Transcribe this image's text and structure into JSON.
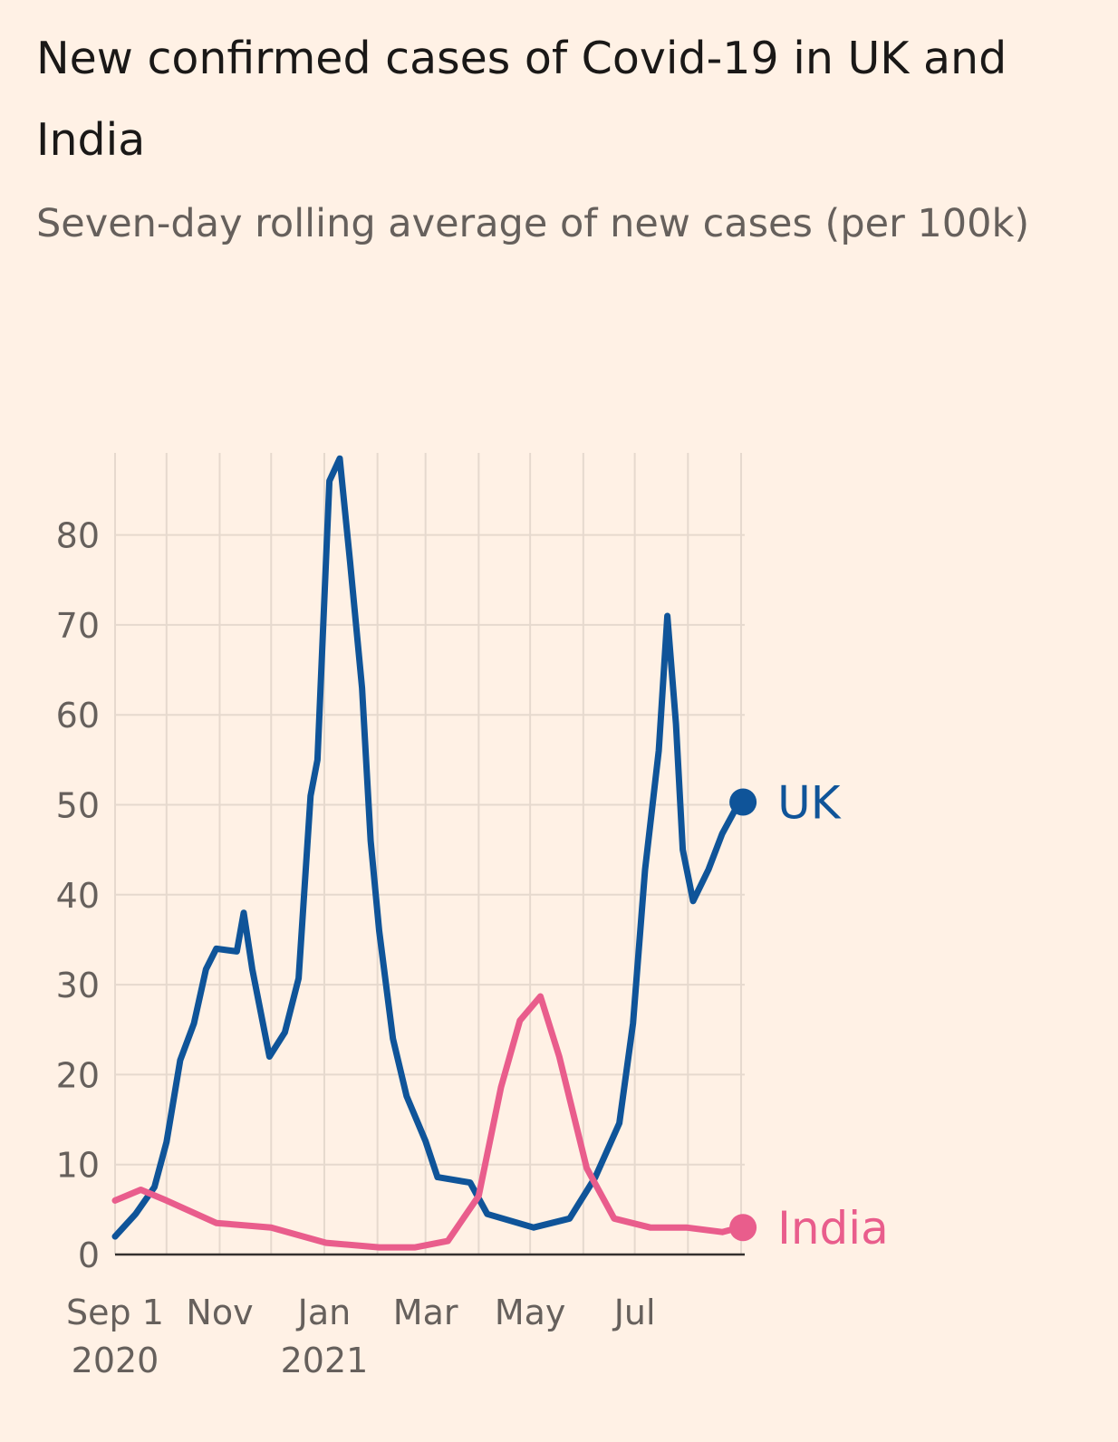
{
  "chart_data": {
    "type": "line",
    "title": "New confirmed cases of Covid-19 in UK and India",
    "subtitle": "Seven-day rolling average of new cases (per 100k)",
    "xlabel": "",
    "ylabel": "",
    "x_unit": "days since Sep 1 2020",
    "xlim": [
      0,
      365
    ],
    "ylim": [
      0,
      89
    ],
    "yticks": [
      0,
      10,
      20,
      30,
      40,
      50,
      60,
      70,
      80
    ],
    "xgrid_days": [
      0,
      30,
      61,
      91,
      122,
      153,
      181,
      212,
      242,
      273,
      303,
      334,
      365
    ],
    "xticks": [
      {
        "day": 0,
        "label": "Sep 1",
        "year": "2020"
      },
      {
        "day": 61,
        "label": "Nov",
        "year": ""
      },
      {
        "day": 122,
        "label": "Jan",
        "year": "2021"
      },
      {
        "day": 181,
        "label": "Mar",
        "year": ""
      },
      {
        "day": 242,
        "label": "May",
        "year": ""
      },
      {
        "day": 303,
        "label": "Jul",
        "year": ""
      }
    ],
    "grid": true,
    "series": [
      {
        "name": "UK",
        "color": "#0F5499",
        "x": [
          0,
          12,
          23,
          30,
          38,
          46,
          53,
          59,
          71,
          75,
          80,
          90,
          99,
          107,
          114,
          118,
          125,
          131,
          137,
          144,
          149,
          154,
          162,
          170,
          181,
          188,
          207,
          217,
          244,
          265,
          280,
          294,
          302,
          309,
          317,
          322,
          327,
          331,
          337,
          346,
          354,
          364
        ],
        "y": [
          2,
          4.5,
          7.5,
          12.5,
          21.6,
          25.7,
          31.7,
          34,
          33.7,
          38,
          31.7,
          22,
          24.7,
          30.7,
          51,
          55,
          86,
          88.5,
          77,
          63,
          46,
          36,
          24,
          17.6,
          12.6,
          8.6,
          8,
          4.5,
          3,
          4,
          8.6,
          14.6,
          25.7,
          42.8,
          56,
          71,
          59,
          45,
          39.3,
          42.8,
          46.8,
          50.3
        ]
      },
      {
        "name": "India",
        "color": "#E95D8C",
        "x": [
          0,
          15,
          30,
          59,
          91,
          123,
          154,
          175,
          194,
          212,
          225,
          236,
          248,
          259,
          275,
          291,
          312,
          333,
          354,
          364
        ],
        "y": [
          6,
          7.2,
          6,
          3.5,
          3,
          1.3,
          0.8,
          0.8,
          1.5,
          6.5,
          18.6,
          26,
          28.7,
          22,
          9.6,
          4,
          3,
          3,
          2.5,
          3
        ]
      }
    ],
    "legend": "direct labels at line ends (right)"
  }
}
